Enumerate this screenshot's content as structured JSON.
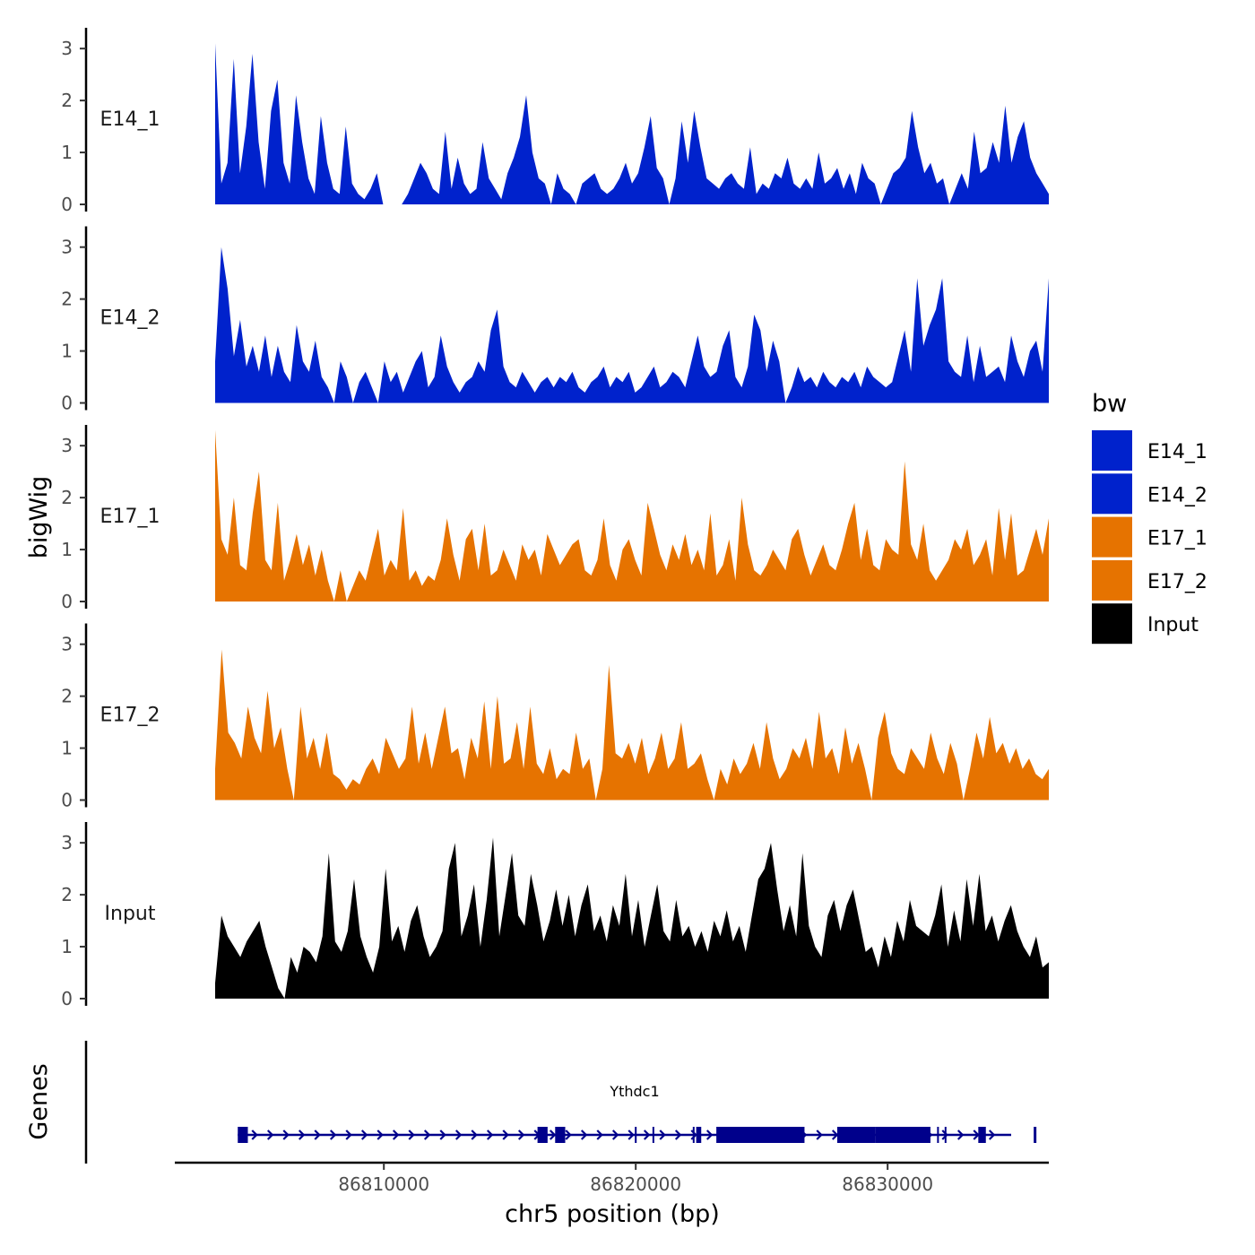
{
  "chart_data": {
    "type": "area",
    "ylabel": "bigWig",
    "xlabel": "chr5 position (bp)",
    "xlim": [
      86801700,
      86836400
    ],
    "x_ticks": [
      86810000,
      86820000,
      86830000
    ],
    "x_tick_labels": [
      "86810000",
      "86820000",
      "86830000"
    ],
    "ylim": [
      0,
      3.4
    ],
    "y_ticks": [
      0,
      1,
      2,
      3
    ],
    "y_tick_labels": [
      "0",
      "1",
      "2",
      "3"
    ],
    "region_start": 86803300,
    "region_end": 86836400,
    "series": [
      {
        "name": "E14_1",
        "color": "#0022cc",
        "values": [
          3.1,
          0.4,
          0.8,
          2.8,
          0.6,
          1.5,
          2.9,
          1.2,
          0.3,
          1.8,
          2.4,
          0.8,
          0.4,
          2.1,
          1.2,
          0.5,
          0.2,
          1.7,
          0.8,
          0.3,
          0.2,
          1.5,
          0.4,
          0.2,
          0.1,
          0.3,
          0.6,
          0,
          0,
          0,
          0,
          0.2,
          0.5,
          0.8,
          0.6,
          0.3,
          0.2,
          1.4,
          0.3,
          0.9,
          0.4,
          0.2,
          0.3,
          1.2,
          0.5,
          0.3,
          0.1,
          0.6,
          0.9,
          1.3,
          2.1,
          1.0,
          0.5,
          0.4,
          0,
          0.6,
          0.3,
          0.2,
          0,
          0.4,
          0.5,
          0.6,
          0.3,
          0.2,
          0.3,
          0.5,
          0.8,
          0.4,
          0.6,
          1.1,
          1.7,
          0.7,
          0.5,
          0,
          0.5,
          1.6,
          0.8,
          1.8,
          1.1,
          0.5,
          0.4,
          0.3,
          0.5,
          0.6,
          0.4,
          0.3,
          1.1,
          0.2,
          0.4,
          0.3,
          0.6,
          0.5,
          0.9,
          0.4,
          0.3,
          0.5,
          0.3,
          1.0,
          0.4,
          0.5,
          0.7,
          0.3,
          0.6,
          0.2,
          0.8,
          0.5,
          0.4,
          0,
          0.3,
          0.6,
          0.7,
          0.9,
          1.8,
          1.1,
          0.6,
          0.8,
          0.4,
          0.5,
          0,
          0.3,
          0.6,
          0.3,
          1.4,
          0.6,
          0.7,
          1.2,
          0.8,
          1.9,
          0.8,
          1.3,
          1.6,
          0.9,
          0.6,
          0.4,
          0.2
        ]
      },
      {
        "name": "E14_2",
        "color": "#0022cc",
        "values": [
          0.8,
          3.0,
          2.2,
          0.9,
          1.6,
          0.7,
          1.1,
          0.6,
          1.3,
          0.5,
          1.1,
          0.6,
          0.4,
          1.5,
          0.8,
          0.6,
          1.2,
          0.5,
          0.3,
          0,
          0.8,
          0.5,
          0,
          0.4,
          0.6,
          0.3,
          0,
          0.8,
          0.4,
          0.6,
          0.2,
          0.5,
          0.8,
          1.0,
          0.3,
          0.5,
          1.3,
          0.7,
          0.4,
          0.2,
          0.4,
          0.5,
          0.8,
          0.6,
          1.4,
          1.8,
          0.7,
          0.4,
          0.3,
          0.6,
          0.4,
          0.2,
          0.4,
          0.5,
          0.3,
          0.5,
          0.4,
          0.6,
          0.3,
          0.2,
          0.4,
          0.5,
          0.7,
          0.3,
          0.5,
          0.4,
          0.6,
          0.2,
          0.3,
          0.5,
          0.7,
          0.3,
          0.4,
          0.6,
          0.5,
          0.3,
          0.8,
          1.3,
          0.7,
          0.5,
          0.6,
          1.1,
          1.4,
          0.5,
          0.3,
          0.7,
          1.7,
          1.4,
          0.6,
          1.2,
          0.8,
          0,
          0.3,
          0.7,
          0.4,
          0.5,
          0.3,
          0.6,
          0.4,
          0.3,
          0.5,
          0.4,
          0.6,
          0.3,
          0.7,
          0.5,
          0.4,
          0.3,
          0.4,
          0.9,
          1.4,
          0.6,
          2.4,
          1.1,
          1.5,
          1.8,
          2.4,
          0.8,
          0.6,
          0.5,
          1.3,
          0.4,
          1.1,
          0.5,
          0.6,
          0.7,
          0.4,
          1.3,
          0.8,
          0.5,
          1.0,
          1.2,
          0.6,
          2.4
        ]
      },
      {
        "name": "E17_1",
        "color": "#e67300",
        "values": [
          3.3,
          1.2,
          0.9,
          2.0,
          0.7,
          0.6,
          1.7,
          2.5,
          0.8,
          0.6,
          1.9,
          0.4,
          0.8,
          1.3,
          0.7,
          1.1,
          0.5,
          1.0,
          0.4,
          0,
          0.6,
          0,
          0.3,
          0.6,
          0.4,
          0.9,
          1.4,
          0.5,
          0.8,
          0.6,
          1.8,
          0.4,
          0.6,
          0.3,
          0.5,
          0.4,
          0.8,
          1.6,
          0.9,
          0.4,
          1.2,
          1.4,
          0.6,
          1.5,
          0.5,
          0.6,
          1.0,
          0.7,
          0.4,
          1.1,
          0.8,
          1.0,
          0.5,
          1.3,
          1.0,
          0.7,
          0.9,
          1.1,
          1.2,
          0.6,
          0.5,
          0.8,
          1.6,
          0.7,
          0.4,
          1.0,
          1.2,
          0.8,
          0.5,
          1.9,
          1.4,
          0.9,
          0.6,
          1.1,
          0.8,
          1.3,
          0.7,
          1.0,
          0.6,
          1.7,
          0.5,
          0.7,
          1.2,
          0.4,
          2.0,
          1.1,
          0.6,
          0.5,
          0.7,
          1.0,
          0.8,
          0.6,
          1.2,
          1.4,
          0.9,
          0.5,
          0.8,
          1.1,
          0.7,
          0.6,
          1.0,
          1.5,
          1.9,
          0.8,
          1.4,
          0.7,
          0.6,
          1.2,
          1.0,
          0.9,
          2.7,
          1.1,
          0.8,
          1.5,
          0.6,
          0.4,
          0.6,
          0.8,
          1.2,
          1.0,
          1.4,
          0.7,
          0.9,
          1.2,
          0.5,
          1.8,
          0.8,
          1.7,
          0.5,
          0.6,
          1.0,
          1.4,
          0.9,
          1.6
        ]
      },
      {
        "name": "E17_2",
        "color": "#e67300",
        "values": [
          0.6,
          2.9,
          1.3,
          1.1,
          0.8,
          1.8,
          1.2,
          0.9,
          2.1,
          1.0,
          1.4,
          0.6,
          0,
          1.8,
          0.8,
          1.2,
          0.6,
          1.3,
          0.5,
          0.4,
          0.2,
          0.4,
          0.3,
          0.6,
          0.8,
          0.5,
          1.2,
          0.9,
          0.6,
          0.8,
          1.8,
          0.7,
          1.3,
          0.6,
          1.2,
          1.8,
          0.9,
          1.0,
          0.4,
          1.2,
          0.8,
          1.9,
          0.6,
          2.0,
          0.7,
          0.8,
          1.5,
          0.6,
          1.8,
          0.7,
          0.5,
          1.0,
          0.4,
          0.6,
          0.5,
          1.3,
          0.6,
          0.8,
          0,
          0.6,
          2.6,
          0.9,
          0.8,
          1.1,
          0.7,
          1.2,
          0.5,
          0.8,
          1.3,
          0.6,
          0.8,
          1.5,
          0.6,
          0.7,
          0.9,
          0.4,
          0,
          0.6,
          0.3,
          0.8,
          0.5,
          0.7,
          1.1,
          0.6,
          1.5,
          0.8,
          0.4,
          0.6,
          1.0,
          0.8,
          1.2,
          0.6,
          1.7,
          0.8,
          1.0,
          0.5,
          1.4,
          0.7,
          1.1,
          0.6,
          0,
          1.2,
          1.7,
          0.9,
          0.6,
          0.5,
          1.0,
          0.8,
          0.6,
          1.3,
          0.8,
          0.5,
          1.1,
          0.7,
          0,
          0.6,
          1.3,
          0.8,
          1.6,
          0.9,
          1.1,
          0.7,
          1.0,
          0.6,
          0.8,
          0.5,
          0.4,
          0.6
        ]
      },
      {
        "name": "Input",
        "color": "#000000",
        "values": [
          0.3,
          1.6,
          1.2,
          1.0,
          0.8,
          1.1,
          1.3,
          1.5,
          1.0,
          0.6,
          0.2,
          0,
          0.8,
          0.5,
          1.0,
          0.9,
          0.7,
          1.2,
          2.8,
          1.1,
          0.9,
          1.3,
          2.3,
          1.2,
          0.8,
          0.5,
          1.0,
          2.5,
          1.1,
          1.4,
          0.9,
          1.5,
          1.8,
          1.2,
          0.8,
          1.0,
          1.3,
          2.5,
          3.0,
          1.2,
          1.6,
          2.2,
          1.0,
          1.9,
          3.1,
          1.2,
          2.0,
          2.8,
          1.6,
          1.4,
          2.4,
          1.8,
          1.1,
          1.5,
          2.1,
          1.4,
          2.0,
          1.2,
          1.8,
          2.2,
          1.3,
          1.6,
          1.1,
          1.8,
          1.4,
          2.4,
          1.2,
          1.9,
          1.0,
          1.6,
          2.2,
          1.3,
          1.1,
          1.9,
          1.2,
          1.4,
          1.0,
          1.3,
          0.9,
          1.5,
          1.2,
          1.7,
          1.1,
          1.4,
          0.9,
          1.6,
          2.3,
          2.5,
          3.0,
          2.1,
          1.3,
          1.8,
          1.2,
          2.8,
          1.4,
          1.0,
          0.8,
          1.6,
          1.9,
          1.3,
          1.8,
          2.1,
          1.5,
          0.9,
          1.0,
          0.6,
          1.2,
          0.8,
          1.5,
          1.1,
          1.9,
          1.4,
          1.3,
          1.2,
          1.6,
          2.2,
          1.0,
          1.7,
          1.1,
          2.3,
          1.4,
          2.4,
          1.3,
          1.6,
          1.1,
          1.5,
          1.8,
          1.3,
          1.0,
          0.8,
          1.2,
          0.6,
          0.7
        ]
      }
    ],
    "legend": {
      "title": "bw",
      "entries": [
        "E14_1",
        "E14_2",
        "E17_1",
        "E17_2",
        "Input"
      ]
    },
    "gene_track": {
      "label": "Genes",
      "gene_name": "Ythdc1",
      "color": "#00008b",
      "start": 86804200,
      "end": 86836700,
      "exons": [
        [
          86804200,
          86804600
        ],
        [
          86816100,
          86816500
        ],
        [
          86816800,
          86817200
        ],
        [
          86822400,
          86822600
        ],
        [
          86823200,
          86826700
        ],
        [
          86828000,
          86829500
        ],
        [
          86829500,
          86831700
        ],
        [
          86833600,
          86833900
        ],
        [
          86835800,
          86836700
        ]
      ]
    }
  }
}
